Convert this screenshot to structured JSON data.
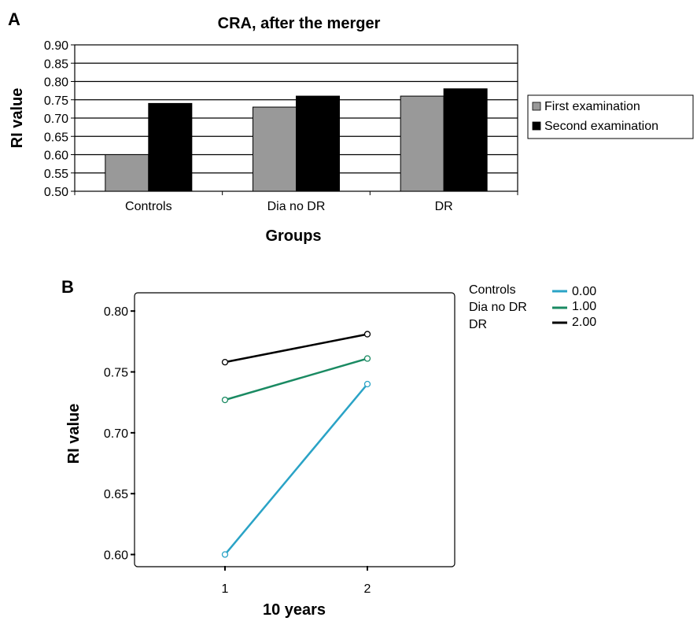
{
  "chart_data": [
    {
      "panel": "A",
      "type": "bar",
      "title": "CRA, after the merger",
      "xlabel": "Groups",
      "ylabel": "RI value",
      "categories": [
        "Controls",
        "Dia no DR",
        "DR"
      ],
      "series": [
        {
          "name": "First examination",
          "values": [
            0.6,
            0.73,
            0.76
          ],
          "color": "#999999"
        },
        {
          "name": "Second examination",
          "values": [
            0.74,
            0.76,
            0.78
          ],
          "color": "#000000"
        }
      ],
      "ylim": [
        0.5,
        0.9
      ],
      "yticks": [
        "0.50",
        "0.55",
        "0.60",
        "0.65",
        "0.70",
        "0.75",
        "0.80",
        "0.85",
        "0.90"
      ],
      "grid": true,
      "legend": "right"
    },
    {
      "panel": "B",
      "type": "line",
      "xlabel": "10 years",
      "ylabel": "RI value",
      "x": [
        1,
        2
      ],
      "xticks": [
        "1",
        "2"
      ],
      "ylim": [
        0.59,
        0.815
      ],
      "yticks": [
        "0.60",
        "0.65",
        "0.70",
        "0.75",
        "0.80"
      ],
      "series": [
        {
          "name": "Controls",
          "code": "0.00",
          "values": [
            0.6,
            0.74
          ],
          "color": "#2aa3c6"
        },
        {
          "name": "Dia no DR",
          "code": "1.00",
          "values": [
            0.727,
            0.761
          ],
          "color": "#1a8a62"
        },
        {
          "name": "DR",
          "code": "2.00",
          "values": [
            0.758,
            0.781
          ],
          "color": "#000000"
        }
      ],
      "grid": false,
      "legend": "top-right"
    }
  ]
}
